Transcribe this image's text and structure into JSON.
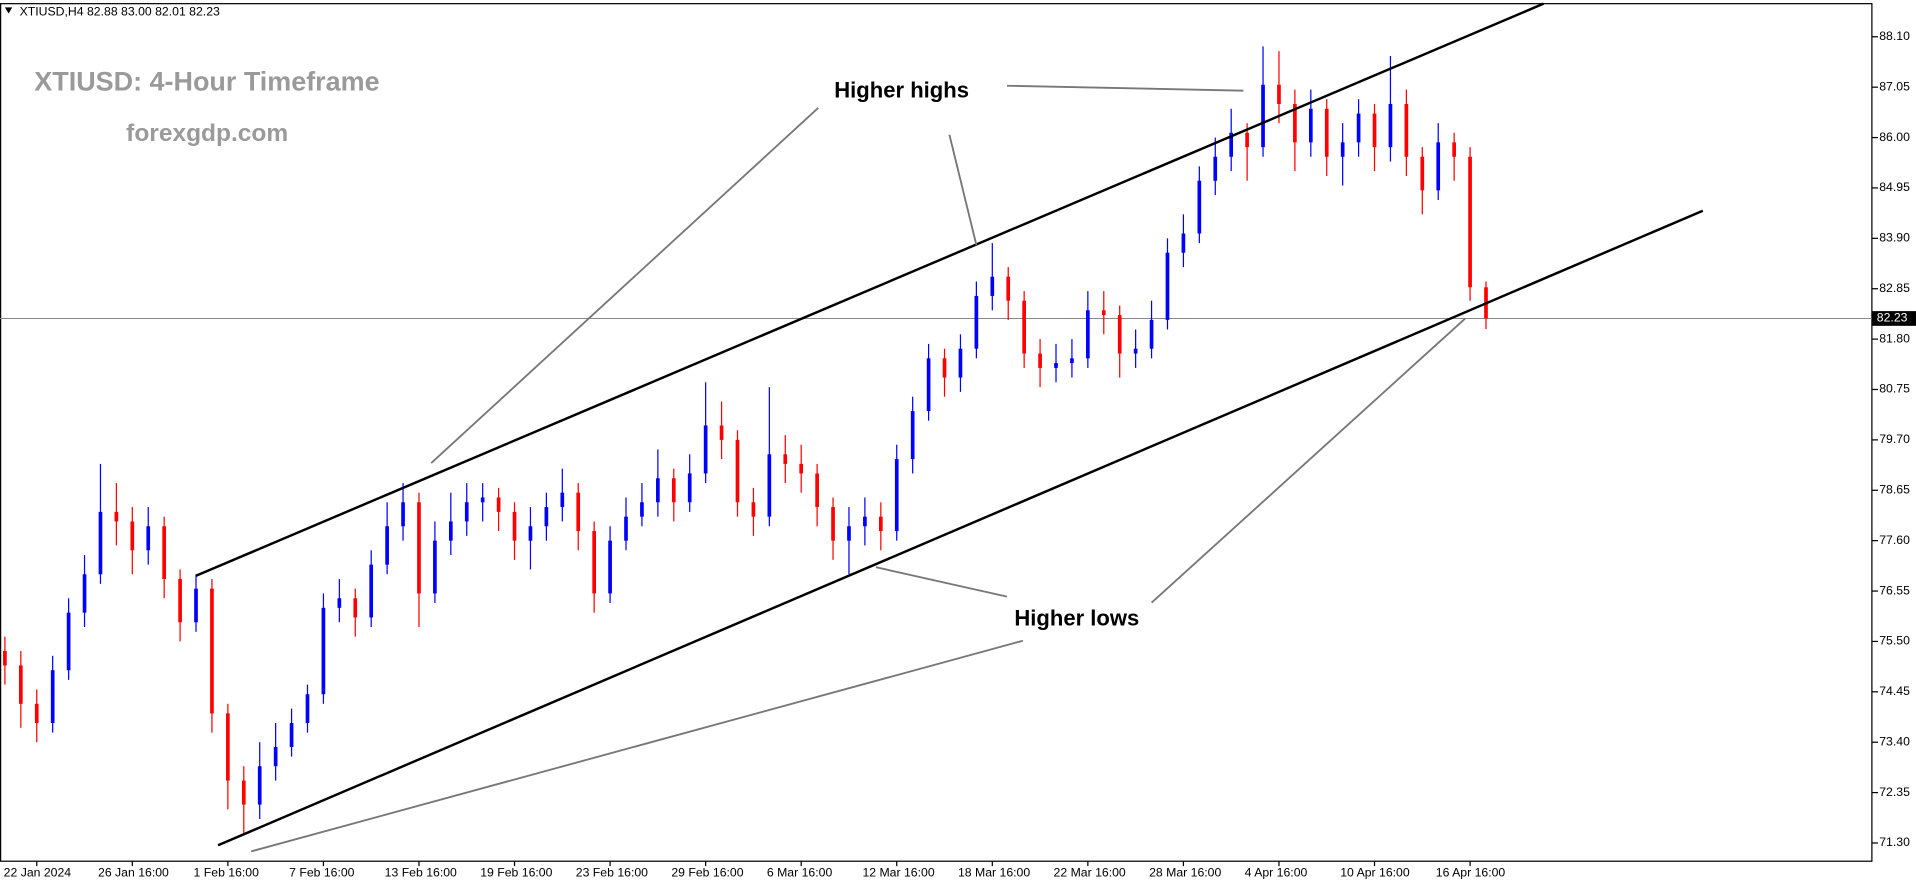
{
  "chart_data": {
    "type": "candlestick",
    "header": "XTIUSD,H4 82.88 83.00 82.01 82.23",
    "title": "XTIUSD: 4-Hour Timeframe",
    "subtitle": "forexgdp.com",
    "annotations": [
      "Higher highs",
      "Higher lows"
    ],
    "up_color": "#0000ff",
    "down_color": "#ff0000",
    "grid": false,
    "current_price": {
      "value": 82.23,
      "label": "82.23"
    },
    "categories": [
      null,
      null,
      "22 Jan 2024",
      null,
      null,
      null,
      null,
      null,
      "26 Jan 16:00",
      null,
      null,
      null,
      null,
      null,
      "1 Feb 16:00",
      null,
      null,
      null,
      null,
      null,
      "7 Feb 16:00",
      null,
      null,
      null,
      null,
      null,
      "13 Feb 16:00",
      null,
      null,
      null,
      null,
      null,
      "19 Feb 16:00",
      null,
      null,
      null,
      null,
      null,
      "23 Feb 16:00",
      null,
      null,
      null,
      null,
      null,
      "29 Feb 16:00",
      null,
      null,
      null,
      null,
      null,
      "6 Mar 16:00",
      null,
      null,
      null,
      null,
      null,
      "12 Mar 16:00",
      null,
      null,
      null,
      null,
      null,
      "18 Mar 16:00",
      null,
      null,
      null,
      null,
      null,
      "22 Mar 16:00",
      null,
      null,
      null,
      null,
      null,
      "28 Mar 16:00",
      null,
      null,
      null,
      null,
      null,
      "4 Apr 16:00",
      null,
      null,
      null,
      null,
      null,
      "10 Apr 16:00",
      null,
      null,
      null,
      null,
      null,
      "16 Apr 16:00",
      null
    ],
    "open": [
      75.3,
      75.0,
      74.2,
      73.8,
      74.9,
      76.1,
      76.9,
      78.2,
      78.0,
      77.4,
      77.9,
      76.8,
      75.9,
      76.6,
      74.0,
      72.6,
      72.1,
      72.9,
      73.3,
      73.8,
      74.4,
      76.2,
      76.4,
      76.0,
      77.1,
      77.9,
      78.4,
      76.5,
      77.6,
      78.0,
      78.4,
      78.5,
      78.2,
      77.6,
      77.9,
      78.3,
      78.6,
      77.8,
      76.5,
      77.6,
      78.1,
      78.4,
      78.9,
      78.4,
      79.0,
      80.0,
      79.7,
      78.4,
      78.1,
      79.4,
      79.2,
      79.0,
      78.3,
      77.6,
      77.9,
      78.1,
      77.8,
      79.3,
      80.3,
      81.4,
      81.0,
      81.6,
      82.7,
      83.1,
      82.6,
      81.5,
      81.2,
      81.3,
      81.4,
      82.4,
      82.3,
      81.5,
      81.6,
      82.2,
      83.6,
      84.0,
      85.1,
      85.6,
      86.1,
      85.8,
      87.1,
      86.7,
      85.9,
      86.6,
      85.6,
      85.9,
      86.5,
      85.8,
      86.7,
      85.6,
      84.9,
      85.9,
      85.6,
      82.88
    ],
    "high": [
      75.6,
      75.3,
      74.5,
      75.2,
      76.4,
      77.3,
      79.2,
      78.8,
      78.3,
      78.3,
      78.1,
      77.0,
      76.9,
      76.8,
      74.2,
      72.9,
      73.4,
      73.8,
      74.1,
      74.6,
      76.5,
      76.8,
      76.6,
      77.4,
      78.4,
      78.8,
      78.6,
      78.0,
      78.6,
      78.8,
      78.8,
      78.7,
      78.4,
      78.3,
      78.6,
      79.1,
      78.8,
      78.0,
      77.9,
      78.5,
      78.8,
      79.5,
      79.1,
      79.4,
      80.9,
      80.5,
      79.9,
      78.7,
      80.8,
      79.8,
      79.6,
      79.2,
      78.5,
      78.3,
      78.5,
      78.4,
      79.6,
      80.6,
      81.7,
      81.6,
      81.9,
      83.0,
      83.8,
      83.3,
      82.8,
      81.8,
      81.7,
      81.8,
      82.8,
      82.8,
      82.5,
      82.0,
      82.6,
      83.9,
      84.4,
      85.4,
      86.0,
      86.6,
      86.3,
      87.9,
      87.8,
      87.0,
      87.0,
      86.8,
      86.3,
      86.8,
      86.7,
      87.7,
      87.0,
      85.8,
      86.3,
      86.1,
      85.8,
      83.0
    ],
    "low": [
      74.6,
      73.7,
      73.4,
      73.6,
      74.7,
      75.8,
      76.7,
      77.5,
      76.9,
      77.1,
      76.4,
      75.5,
      75.7,
      73.6,
      72.0,
      71.5,
      71.8,
      72.6,
      73.1,
      73.6,
      74.2,
      75.9,
      75.6,
      75.8,
      76.9,
      77.6,
      75.8,
      76.3,
      77.3,
      77.7,
      78.0,
      77.8,
      77.2,
      77.0,
      77.6,
      78.0,
      77.4,
      76.1,
      76.3,
      77.4,
      77.9,
      78.1,
      78.0,
      78.2,
      78.8,
      79.3,
      78.1,
      77.7,
      77.9,
      78.8,
      78.6,
      77.9,
      77.2,
      76.9,
      77.5,
      77.4,
      77.6,
      79.0,
      80.1,
      80.6,
      80.7,
      81.4,
      82.4,
      82.2,
      81.2,
      80.8,
      80.9,
      81.0,
      81.2,
      81.9,
      81.0,
      81.2,
      81.4,
      82.0,
      83.3,
      83.8,
      84.8,
      85.3,
      85.1,
      85.6,
      86.3,
      85.3,
      85.6,
      85.2,
      85.0,
      85.6,
      85.3,
      85.5,
      85.2,
      84.4,
      84.7,
      85.1,
      82.6,
      82.01
    ],
    "close": [
      75.0,
      74.2,
      73.8,
      74.9,
      76.1,
      76.9,
      78.2,
      78.0,
      77.4,
      77.9,
      76.8,
      75.9,
      76.6,
      74.0,
      72.6,
      72.1,
      72.9,
      73.3,
      73.8,
      74.4,
      76.2,
      76.4,
      76.0,
      77.1,
      77.9,
      78.4,
      76.5,
      77.6,
      78.0,
      78.4,
      78.5,
      78.2,
      77.6,
      77.9,
      78.3,
      78.6,
      77.8,
      76.5,
      77.6,
      78.1,
      78.4,
      78.9,
      78.4,
      79.0,
      80.0,
      79.7,
      78.4,
      78.1,
      79.4,
      79.2,
      79.0,
      78.3,
      77.6,
      77.9,
      78.1,
      77.8,
      79.3,
      80.3,
      81.4,
      81.0,
      81.6,
      82.7,
      83.1,
      82.6,
      81.5,
      81.2,
      81.3,
      81.4,
      82.4,
      82.3,
      81.5,
      81.6,
      82.2,
      83.6,
      84.0,
      85.1,
      85.6,
      86.1,
      85.8,
      87.1,
      86.7,
      85.9,
      86.6,
      85.6,
      85.9,
      86.5,
      85.8,
      86.7,
      85.6,
      84.9,
      85.9,
      85.6,
      82.88,
      82.23
    ],
    "ylim": [
      70.92,
      88.79
    ],
    "yticks": [
      {
        "value": 71.3,
        "label": "71.30"
      },
      {
        "value": 72.35,
        "label": "72.35"
      },
      {
        "value": 73.4,
        "label": "73.40"
      },
      {
        "value": 74.45,
        "label": "74.45"
      },
      {
        "value": 75.5,
        "label": "75.50"
      },
      {
        "value": 76.55,
        "label": "76.55"
      },
      {
        "value": 77.6,
        "label": "77.60"
      },
      {
        "value": 78.65,
        "label": "78.65"
      },
      {
        "value": 79.7,
        "label": "79.70"
      },
      {
        "value": 80.75,
        "label": "80.75"
      },
      {
        "value": 81.8,
        "label": "81.80"
      },
      {
        "value": 82.85,
        "label": "82.85"
      },
      {
        "value": 83.9,
        "label": "83.90"
      },
      {
        "value": 84.95,
        "label": "84.95"
      },
      {
        "value": 86.0,
        "label": "86.00"
      },
      {
        "value": 87.05,
        "label": "87.05"
      },
      {
        "value": 88.1,
        "label": "88.10"
      }
    ]
  }
}
